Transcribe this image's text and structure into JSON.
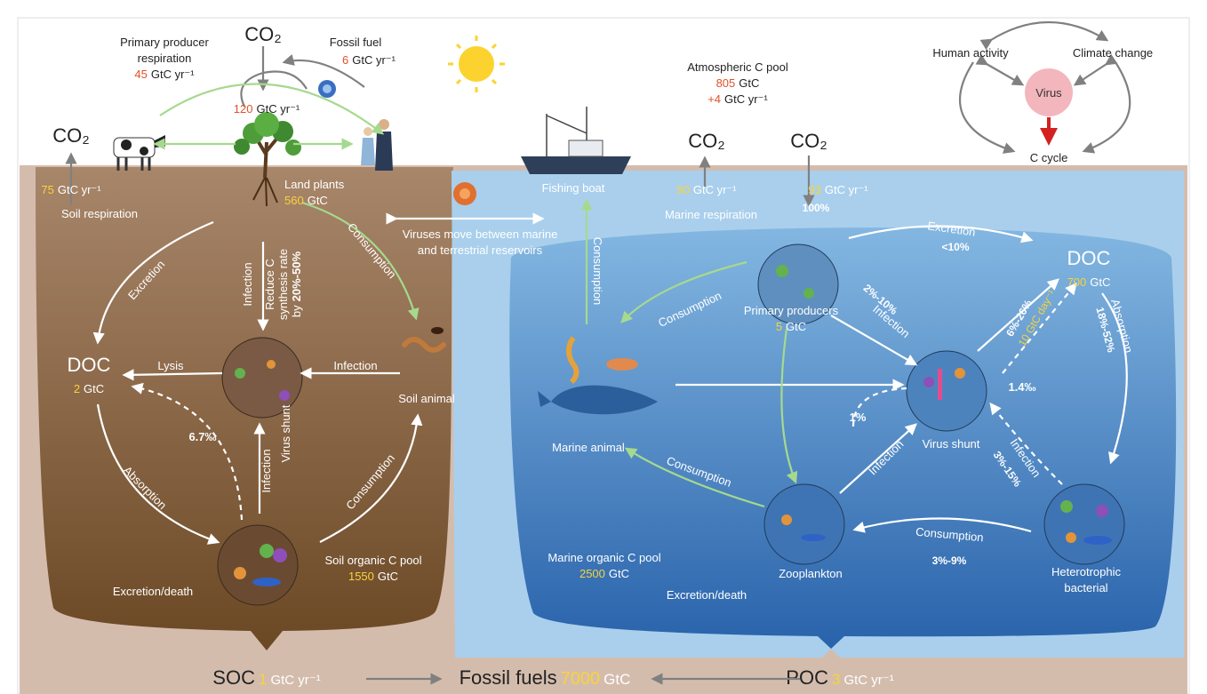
{
  "sky": {
    "co2": "CO₂",
    "respiration": {
      "label": [
        "Primary producer",
        "respiration"
      ],
      "value": 45,
      "unit": "GtC yr⁻¹"
    },
    "fossil_fuel": {
      "label": "Fossil fuel",
      "value": 6,
      "unit": "GtC yr⁻¹"
    },
    "uptake": {
      "value": 120,
      "unit": "GtC yr⁻¹"
    },
    "atmospheric_pool": {
      "label": "Atmospheric C pool",
      "value": 805,
      "unit": "GtC",
      "change": "+4",
      "change_unit": "GtC yr⁻¹"
    }
  },
  "terrestrial": {
    "co2": "CO₂",
    "soil_respiration": {
      "value": 75,
      "unit": "GtC yr⁻¹",
      "label": "Soil respiration"
    },
    "land_plants": {
      "label": "Land plants",
      "value": 560,
      "unit": "GtC"
    },
    "doc": {
      "label": "DOC",
      "value": 2,
      "unit": "GtC"
    },
    "excretion": "Excretion",
    "consumption_plants": "Consumption",
    "infection_plants": "Infection",
    "reduction": {
      "lines": [
        "Reduce C",
        "synthesis rate"
      ],
      "prefix": "by",
      "value": "20%-50%"
    },
    "lysis": "Lysis",
    "infection_animal": "Infection",
    "soil_animal": "Soil animal",
    "virus_shunt": "Virus shunt",
    "release": "6.7‰",
    "infection_bacteria": "Infection",
    "absorption": "Absorption",
    "consumption_bacteria": "Consumption",
    "pool": {
      "label": "Soil organic C pool",
      "value": 1550,
      "unit": "GtC"
    },
    "excretion_death": "Excretion/death"
  },
  "exchange": {
    "virus_movement": [
      "Viruses move between marine",
      "and terrestrial reservoirs"
    ],
    "fishing_boat": "Fishing boat"
  },
  "marine": {
    "co2_out": "CO₂",
    "co2_in": "CO₂",
    "respiration": {
      "value": 90,
      "unit": "GtC yr⁻¹",
      "label": "Marine respiration"
    },
    "uptake": {
      "value": 93,
      "unit": "GtC yr⁻¹",
      "share": "100%"
    },
    "consumption_boat": "Consumption",
    "excretion": {
      "label": "Excretion",
      "share": "<10%"
    },
    "doc": {
      "label": "DOC",
      "value": 700,
      "unit": "GtC"
    },
    "consumption_animal": "Consumption",
    "primary_producers": {
      "label": "Primary producers",
      "value": 5,
      "unit": "GtC"
    },
    "infection_producers": {
      "label": "Infection",
      "share": "2%-10%"
    },
    "doc_release": {
      "share": "6%-26%",
      "rate": "10 GtC day⁻¹"
    },
    "absorption": {
      "label": "Absorption",
      "share": "18%-52%"
    },
    "virus_release": "1.4‰",
    "animal_release": "1%",
    "marine_animal": "Marine animal",
    "virus_shunt": "Virus shunt",
    "infection_zooplankton": "Infection",
    "infection_bacteria": {
      "label": "Infection",
      "share": "3%-15%"
    },
    "consumption_zooplankton": "Consumption",
    "consumption_bacteria": {
      "label": "Consumption",
      "share": "3%-9%"
    },
    "zooplankton": "Zooplankton",
    "bacteria": [
      "Heterotrophic",
      "bacterial"
    ],
    "pool": {
      "label": "Marine organic C pool",
      "value": 2500,
      "unit": "GtC"
    },
    "excretion_death": "Excretion/death"
  },
  "inset": {
    "human_activity": "Human activity",
    "climate_change": "Climate change",
    "virus": "Virus",
    "c_cycle": "C cycle"
  },
  "bottom": {
    "soc": {
      "label": "SOC",
      "value": 1,
      "unit": "GtC yr⁻¹"
    },
    "fossil_fuels": {
      "label": "Fossil fuels",
      "value": 7000,
      "unit": "GtC"
    },
    "poc": {
      "label": "POC",
      "value": 3,
      "unit": "GtC yr⁻¹"
    }
  }
}
